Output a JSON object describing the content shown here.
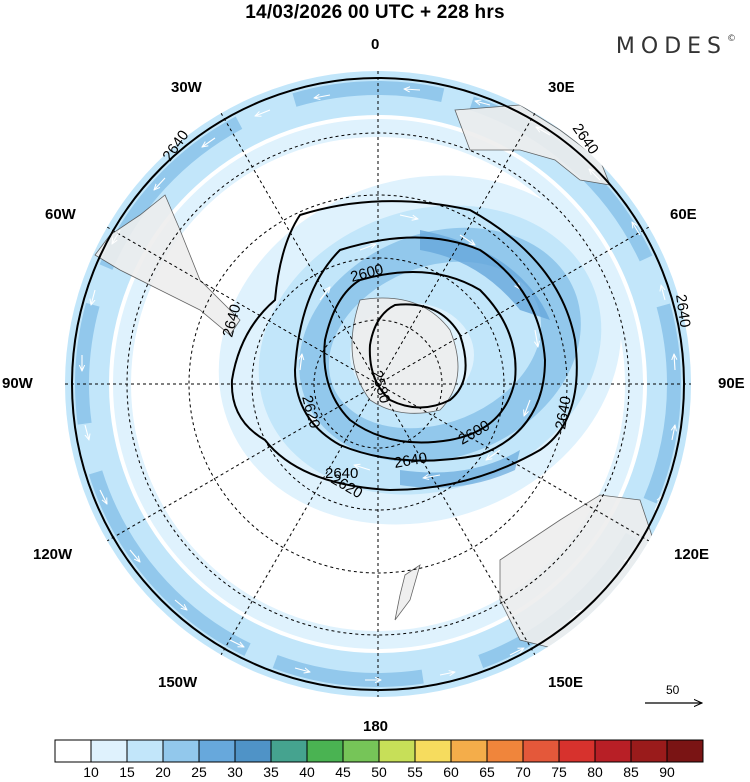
{
  "title": "14/03/2026  00 UTC  + 228 hrs",
  "brand": "MODES",
  "brand_mark": "©",
  "lon_labels": {
    "n": "0",
    "ne30": "30E",
    "ne60": "60E",
    "e": "90E",
    "se120": "120E",
    "se150": "150E",
    "s": "180",
    "sw150": "150W",
    "sw120": "120W",
    "w": "90W",
    "nw60": "60W",
    "nw30": "30W"
  },
  "contour_labels": [
    "2640",
    "2640",
    "2640",
    "2640",
    "2600",
    "2640",
    "2580",
    "2620",
    "2600",
    "2640",
    "2620",
    "2640"
  ],
  "vector_reference": {
    "label": "50",
    "icon": "arrow-right-icon"
  },
  "colorbar": {
    "ticks": [
      "10",
      "15",
      "20",
      "25",
      "30",
      "35",
      "40",
      "45",
      "50",
      "55",
      "60",
      "65",
      "70",
      "75",
      "80",
      "85",
      "90"
    ],
    "colors": [
      "#ffffff",
      "#dff2fd",
      "#c2e6fa",
      "#92c8ec",
      "#67a8dc",
      "#4f93c7",
      "#45a38f",
      "#4ab352",
      "#76c558",
      "#c7df58",
      "#f6dc5e",
      "#f4ad4a",
      "#f0853b",
      "#e4583a",
      "#d7322d",
      "#b81f26",
      "#9a1b1b",
      "#7a1414"
    ]
  }
}
